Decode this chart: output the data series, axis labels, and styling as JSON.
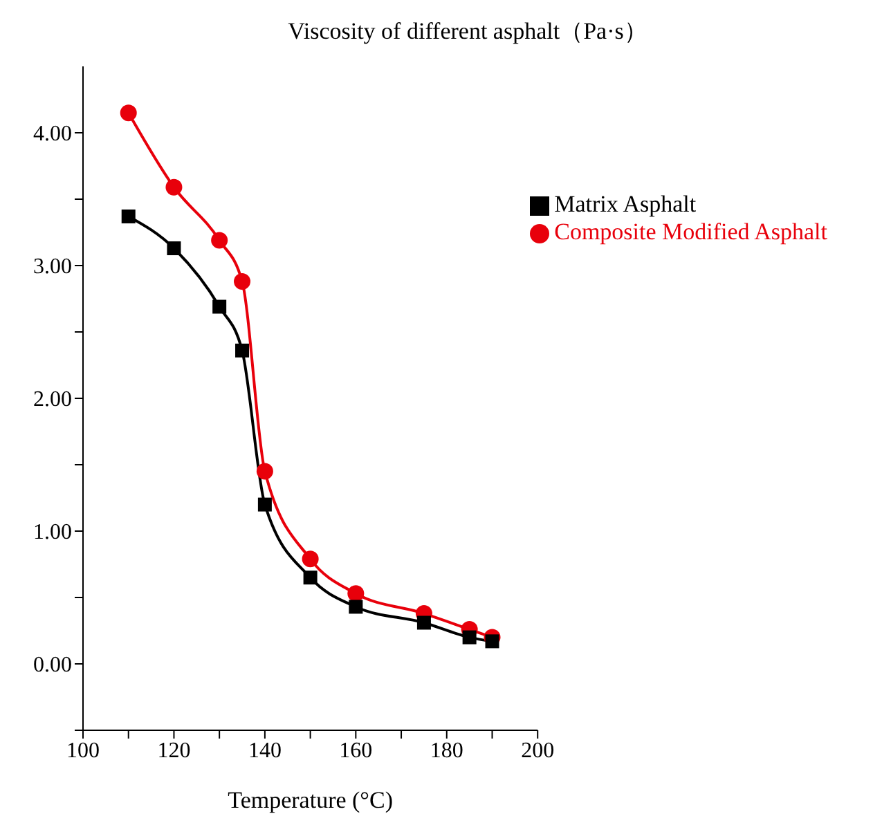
{
  "chart_data": {
    "type": "line",
    "title": "Viscosity of different asphalt（Pa·s）",
    "xlabel": "Temperature (°C)",
    "x": [
      110,
      120,
      130,
      135,
      140,
      150,
      160,
      175,
      185,
      190
    ],
    "series": [
      {
        "name": "Matrix Asphalt",
        "color": "#000000",
        "marker": "square",
        "values": [
          3.37,
          3.13,
          2.69,
          2.36,
          1.2,
          0.65,
          0.43,
          0.31,
          0.2,
          0.17
        ]
      },
      {
        "name": "Composite Modified Asphalt",
        "color": "#e8000b",
        "marker": "circle",
        "values": [
          4.15,
          3.59,
          3.19,
          2.88,
          1.45,
          0.79,
          0.53,
          0.38,
          0.26,
          0.2
        ]
      }
    ],
    "xlim": [
      100,
      200
    ],
    "xticks": [
      100,
      {
        "value": 110,
        "label": null
      },
      120,
      {
        "value": 130,
        "label": null
      },
      140,
      {
        "value": 150,
        "label": null
      },
      160,
      {
        "value": 170,
        "label": null
      },
      180,
      {
        "value": 190,
        "label": null
      },
      200
    ],
    "ylim": [
      -0.5,
      4.5
    ],
    "yticks": [
      {
        "value": -0.5,
        "label": null
      },
      {
        "value": 0,
        "label": "0.00"
      },
      {
        "value": 0.5,
        "label": null
      },
      {
        "value": 1,
        "label": "1.00"
      },
      {
        "value": 1.5,
        "label": null
      },
      {
        "value": 2,
        "label": "2.00"
      },
      {
        "value": 2.5,
        "label": null
      },
      {
        "value": 3,
        "label": "3.00"
      },
      {
        "value": 3.5,
        "label": null
      },
      {
        "value": 4,
        "label": "4.00"
      }
    ],
    "grid": false,
    "legend": "top right",
    "line_style": "solid"
  }
}
